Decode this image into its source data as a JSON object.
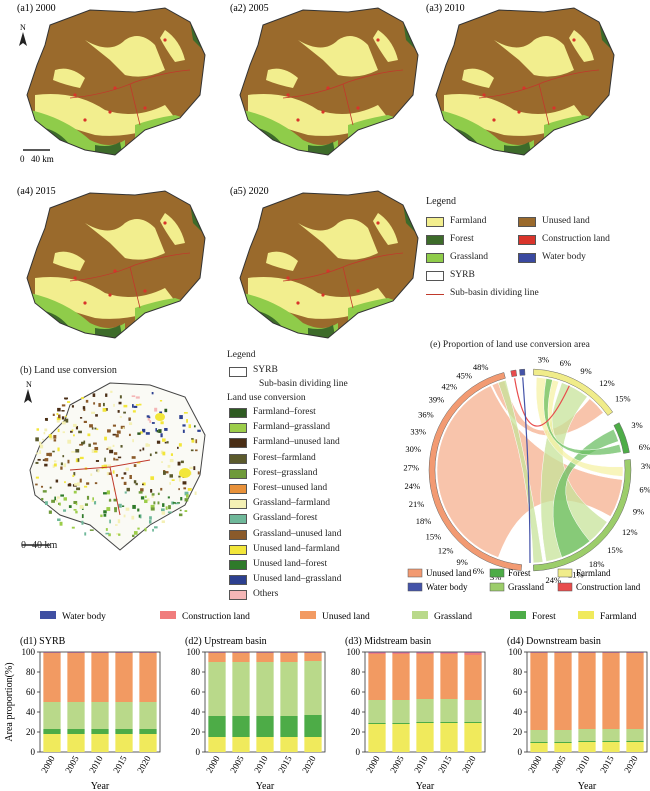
{
  "colors": {
    "farmland": "#f2ee8e",
    "forest": "#3d6b2a",
    "grassland": "#8fcc4a",
    "unused": "#9a6a2c",
    "construction": "#d9342b",
    "water": "#3a49a0",
    "bar_water": "#3f4fa2",
    "bar_construction": "#f07c7c",
    "bar_unused": "#f29a62",
    "bar_grass": "#b9d98a",
    "bar_forest": "#4dac47",
    "bar_farm": "#f0ea5c"
  },
  "maps": [
    {
      "label": "(a1) 2000"
    },
    {
      "label": "(a2) 2005"
    },
    {
      "label": "(a3) 2010"
    },
    {
      "label": "(a4) 2015"
    },
    {
      "label": "(a5) 2020"
    }
  ],
  "map_scale": {
    "zero": "0",
    "dist": "40 km"
  },
  "north": "N",
  "legend_a": {
    "title": "Legend",
    "items": [
      "Farmland",
      "Unused land",
      "Forest",
      "Construction land",
      "Grassland",
      "Water body",
      "SYRB",
      "Sub-basin dividing line"
    ]
  },
  "panel_b": {
    "title": "(b) Land use conversion",
    "scale_zero": "0",
    "scale_dist": "40 km"
  },
  "legend_b": {
    "title": "Legend",
    "syrb": "SYRB",
    "divider": "Sub-basin dividing line",
    "subtitle": "Land use conversion",
    "items": [
      {
        "name": "Farmland–forest",
        "color": "#2e5a22"
      },
      {
        "name": "Farmland–grassland",
        "color": "#9ccd4a"
      },
      {
        "name": "Farmland–unused land",
        "color": "#4a2e16"
      },
      {
        "name": "Forest–farmland",
        "color": "#5b5a2c"
      },
      {
        "name": "Forest–grassland",
        "color": "#6f9a3a"
      },
      {
        "name": "Forest–unused land",
        "color": "#e8913a"
      },
      {
        "name": "Grassland–farmland",
        "color": "#f4f0b4"
      },
      {
        "name": "Grassland–forest",
        "color": "#6fb89a"
      },
      {
        "name": "Grassland–unused land",
        "color": "#8a5a2a"
      },
      {
        "name": "Unused land–farmland",
        "color": "#f2e63a"
      },
      {
        "name": "Unused land–forest",
        "color": "#2f7a2a"
      },
      {
        "name": "Unused land–grassland",
        "color": "#2c3f8f"
      },
      {
        "name": "Others",
        "color": "#f4b6b6"
      }
    ]
  },
  "panel_e": {
    "title": "(e) Proportion of land use conversion area",
    "ticks_left": [
      "48%",
      "45%",
      "42%",
      "39%",
      "36%",
      "33%",
      "30%",
      "27%",
      "24%",
      "21%",
      "18%",
      "15%",
      "12%",
      "9%",
      "6%",
      "3%"
    ],
    "ticks_farm": [
      "3%",
      "6%",
      "9%",
      "12%",
      "15%"
    ],
    "ticks_forest": [
      "3%",
      "6%"
    ],
    "ticks_grass": [
      "3%",
      "6%",
      "9%",
      "12%",
      "15%",
      "18%",
      "21%",
      "24%"
    ],
    "legend": [
      "Unused land",
      "Forest",
      "Farmland",
      "Water body",
      "Grassland",
      "Construction land"
    ]
  },
  "bar_legend": [
    "Water body",
    "Construction land",
    "Unused land",
    "Grassland",
    "Forest",
    "Farmland"
  ],
  "bar_axis": {
    "ylabel": "Area proportion(%)",
    "xlabel": "Year",
    "yticks": [
      "0",
      "20",
      "40",
      "60",
      "80",
      "100"
    ]
  },
  "chart_data": [
    {
      "type": "bar",
      "title": "(d1) SYRB",
      "categories": [
        "2000",
        "2005",
        "2010",
        "2015",
        "2020"
      ],
      "series": [
        {
          "name": "Farmland",
          "values": [
            18,
            18,
            18,
            18,
            18
          ]
        },
        {
          "name": "Forest",
          "values": [
            5,
            5,
            5,
            5,
            5
          ]
        },
        {
          "name": "Grassland",
          "values": [
            27,
            27,
            27,
            27,
            27
          ]
        },
        {
          "name": "Unused land",
          "values": [
            49,
            49,
            49,
            49,
            49
          ]
        },
        {
          "name": "Construction land",
          "values": [
            0.6,
            0.6,
            0.6,
            0.6,
            0.6
          ]
        },
        {
          "name": "Water body",
          "values": [
            0.4,
            0.4,
            0.4,
            0.4,
            0.4
          ]
        }
      ],
      "ylim": [
        0,
        100
      ]
    },
    {
      "type": "bar",
      "title": "(d2) Upstream basin",
      "categories": [
        "2000",
        "2005",
        "2010",
        "2015",
        "2020"
      ],
      "series": [
        {
          "name": "Farmland",
          "values": [
            15,
            15,
            15,
            15,
            15
          ]
        },
        {
          "name": "Forest",
          "values": [
            21,
            21,
            21,
            21,
            22
          ]
        },
        {
          "name": "Grassland",
          "values": [
            54,
            54,
            54,
            54,
            54
          ]
        },
        {
          "name": "Unused land",
          "values": [
            9,
            9,
            9,
            9,
            8
          ]
        },
        {
          "name": "Construction land",
          "values": [
            0.6,
            0.6,
            0.6,
            0.6,
            0.6
          ]
        },
        {
          "name": "Water body",
          "values": [
            0.4,
            0.4,
            0.4,
            0.4,
            0.4
          ]
        }
      ],
      "ylim": [
        0,
        100
      ]
    },
    {
      "type": "bar",
      "title": "(d3) Midstream basin",
      "categories": [
        "2000",
        "2005",
        "2010",
        "2015",
        "2020"
      ],
      "series": [
        {
          "name": "Farmland",
          "values": [
            28,
            28,
            29,
            29,
            29
          ]
        },
        {
          "name": "Forest",
          "values": [
            1,
            1,
            1,
            1,
            1
          ]
        },
        {
          "name": "Grassland",
          "values": [
            23,
            23,
            23,
            23,
            22
          ]
        },
        {
          "name": "Unused land",
          "values": [
            46,
            46,
            45,
            45,
            45
          ]
        },
        {
          "name": "Construction land",
          "values": [
            1.5,
            1.5,
            1.5,
            1.5,
            2.5
          ]
        },
        {
          "name": "Water body",
          "values": [
            0.5,
            0.5,
            0.5,
            0.5,
            0.5
          ]
        }
      ],
      "ylim": [
        0,
        100
      ]
    },
    {
      "type": "bar",
      "title": "(d4) Downstream basin",
      "categories": [
        "2000",
        "2005",
        "2010",
        "2015",
        "2020"
      ],
      "series": [
        {
          "name": "Farmland",
          "values": [
            9,
            9,
            10,
            10,
            10
          ]
        },
        {
          "name": "Forest",
          "values": [
            1,
            1,
            1,
            1,
            1
          ]
        },
        {
          "name": "Grassland",
          "values": [
            12,
            12,
            12,
            12,
            12
          ]
        },
        {
          "name": "Unused land",
          "values": [
            77,
            77,
            76,
            76,
            76
          ]
        },
        {
          "name": "Construction land",
          "values": [
            0.6,
            0.6,
            0.6,
            0.6,
            0.6
          ]
        },
        {
          "name": "Water body",
          "values": [
            0.4,
            0.4,
            0.4,
            0.4,
            0.4
          ]
        }
      ],
      "ylim": [
        0,
        100
      ]
    }
  ]
}
